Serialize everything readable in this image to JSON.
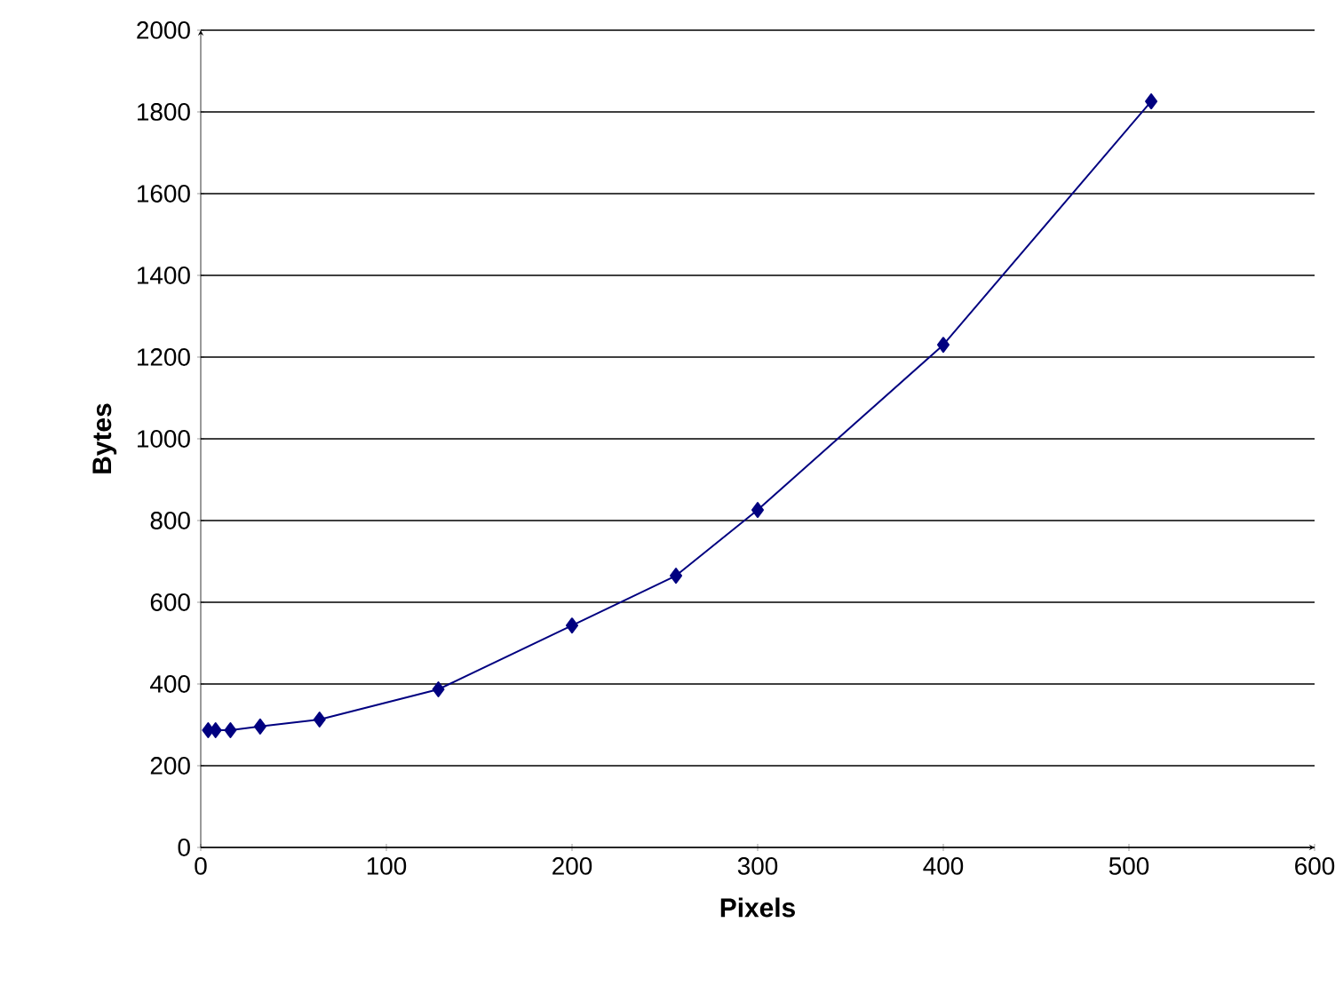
{
  "chart_data": {
    "type": "line",
    "xlabel": "Pixels",
    "ylabel": "Bytes",
    "x": [
      4,
      8,
      16,
      32,
      64,
      128,
      200,
      256,
      300,
      400,
      512
    ],
    "series": [
      {
        "color": "#000080",
        "values": [
          287,
          287,
          287,
          296,
          313,
          387,
          543,
          665,
          826,
          1230,
          1826
        ]
      }
    ],
    "xlim": [
      0,
      600
    ],
    "xticks": [
      0,
      100,
      200,
      300,
      400,
      500,
      600
    ],
    "ylim": [
      0,
      2000
    ],
    "yticks": [
      0,
      200,
      400,
      600,
      800,
      1000,
      1200,
      1400,
      1600,
      1800,
      2000
    ],
    "grid": "y",
    "marker": "diamond",
    "line_style": "solid"
  }
}
